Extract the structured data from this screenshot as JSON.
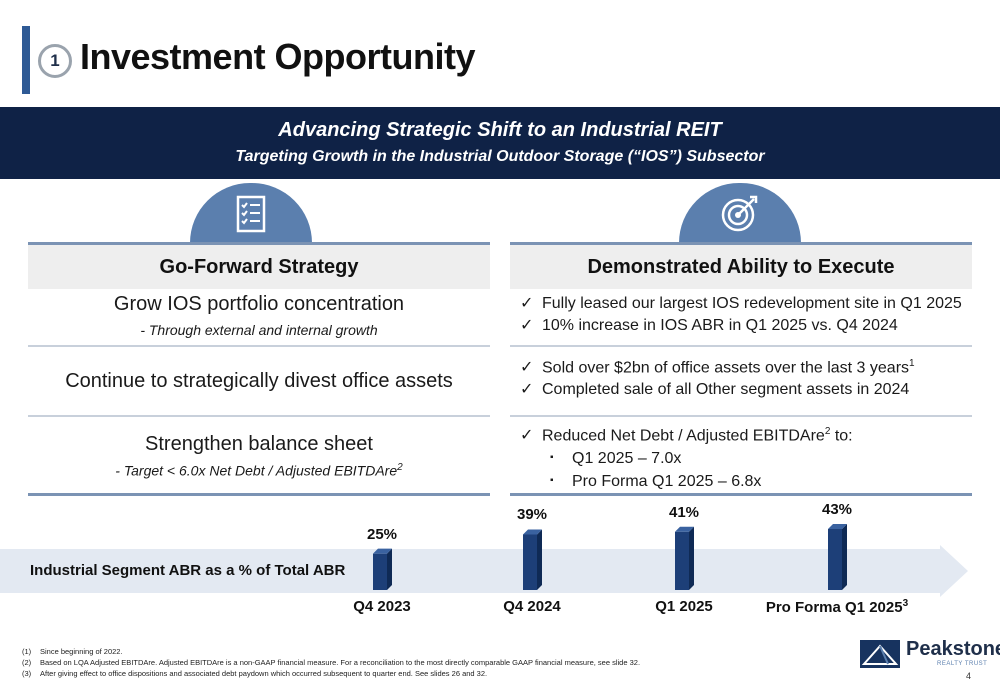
{
  "header": {
    "section_number": "1",
    "title": "Investment Opportunity"
  },
  "banner": {
    "line1": "Advancing Strategic Shift to an Industrial REIT",
    "line2": "Targeting Growth in the Industrial Outdoor Storage (“IOS”) Subsector"
  },
  "icons": {
    "left": "checklist-icon",
    "right": "target-icon"
  },
  "left_column": {
    "heading": "Go-Forward Strategy",
    "rows": [
      {
        "main": "Grow IOS portfolio concentration",
        "sub": "- Through external and internal growth"
      },
      {
        "main": "Continue to strategically divest office assets",
        "sub": ""
      },
      {
        "main": "Strengthen balance sheet",
        "sub": "-  Target < 6.0x Net Debt / Adjusted EBITDAre",
        "sub_sup": "2"
      }
    ]
  },
  "right_column": {
    "heading": "Demonstrated Ability to Execute",
    "check_mark": "✓",
    "bullet_mark": "▪",
    "group1": [
      "Fully leased our largest IOS redevelopment site in Q1 2025",
      "10% increase in IOS ABR in Q1 2025 vs. Q4 2024"
    ],
    "group2": [
      {
        "text": "Sold over $2bn of office assets over the last 3 years",
        "sup": "1"
      },
      {
        "text": "Completed sale of all Other segment assets in 2024",
        "sup": ""
      }
    ],
    "group3": {
      "text_before": "Reduced Net Debt / Adjusted EBITDAre",
      "sup": "2",
      "text_after": " to:",
      "bullets": [
        "Q1 2025 – 7.0x",
        "Pro Forma Q1 2025 – 6.8x"
      ]
    }
  },
  "chart_data": {
    "type": "bar",
    "title": "Industrial Segment ABR as a % of Total ABR",
    "categories": [
      "Q4 2023",
      "Q4 2024",
      "Q1 2025",
      "Pro Forma Q1 2025"
    ],
    "category_sups": [
      "",
      "",
      "",
      "3"
    ],
    "values": [
      25,
      39,
      41,
      43
    ],
    "value_labels": [
      "25%",
      "39%",
      "41%",
      "43%"
    ],
    "bar_color": "#1d3f78",
    "band_color": "#e3e9f2"
  },
  "footnotes": [
    {
      "num": "(1)",
      "text": "Since beginning of 2022."
    },
    {
      "num": "(2)",
      "text": "Based on LQA Adjusted EBITDAre. Adjusted EBITDAre is a non-GAAP financial measure. For a reconciliation to the most directly comparable GAAP financial measure, see slide 32."
    },
    {
      "num": "(3)",
      "text": "After giving effect to office dispositions and associated debt paydown which occurred subsequent to quarter end. See slides 26 and 32."
    }
  ],
  "branding": {
    "name": "Peakstone",
    "registered": "®",
    "tagline": "REALTY TRUST"
  },
  "page_number": "4"
}
